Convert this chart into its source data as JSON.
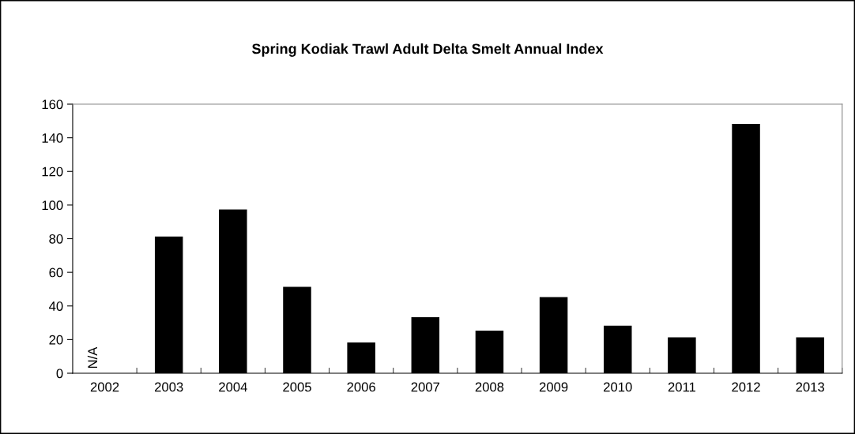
{
  "chart_data": {
    "type": "bar",
    "title": "Spring Kodiak Trawl Adult Delta Smelt Annual Index",
    "categories": [
      "2002",
      "2003",
      "2004",
      "2005",
      "2006",
      "2007",
      "2008",
      "2009",
      "2010",
      "2011",
      "2012",
      "2013"
    ],
    "values": [
      null,
      81,
      97,
      51,
      18,
      33,
      25,
      45,
      28,
      21,
      148,
      21
    ],
    "color": "#000000",
    "ylim": [
      0,
      160
    ],
    "yticks": [
      0,
      20,
      40,
      60,
      80,
      100,
      120,
      140,
      160
    ],
    "annotations": [
      "N/A"
    ]
  }
}
